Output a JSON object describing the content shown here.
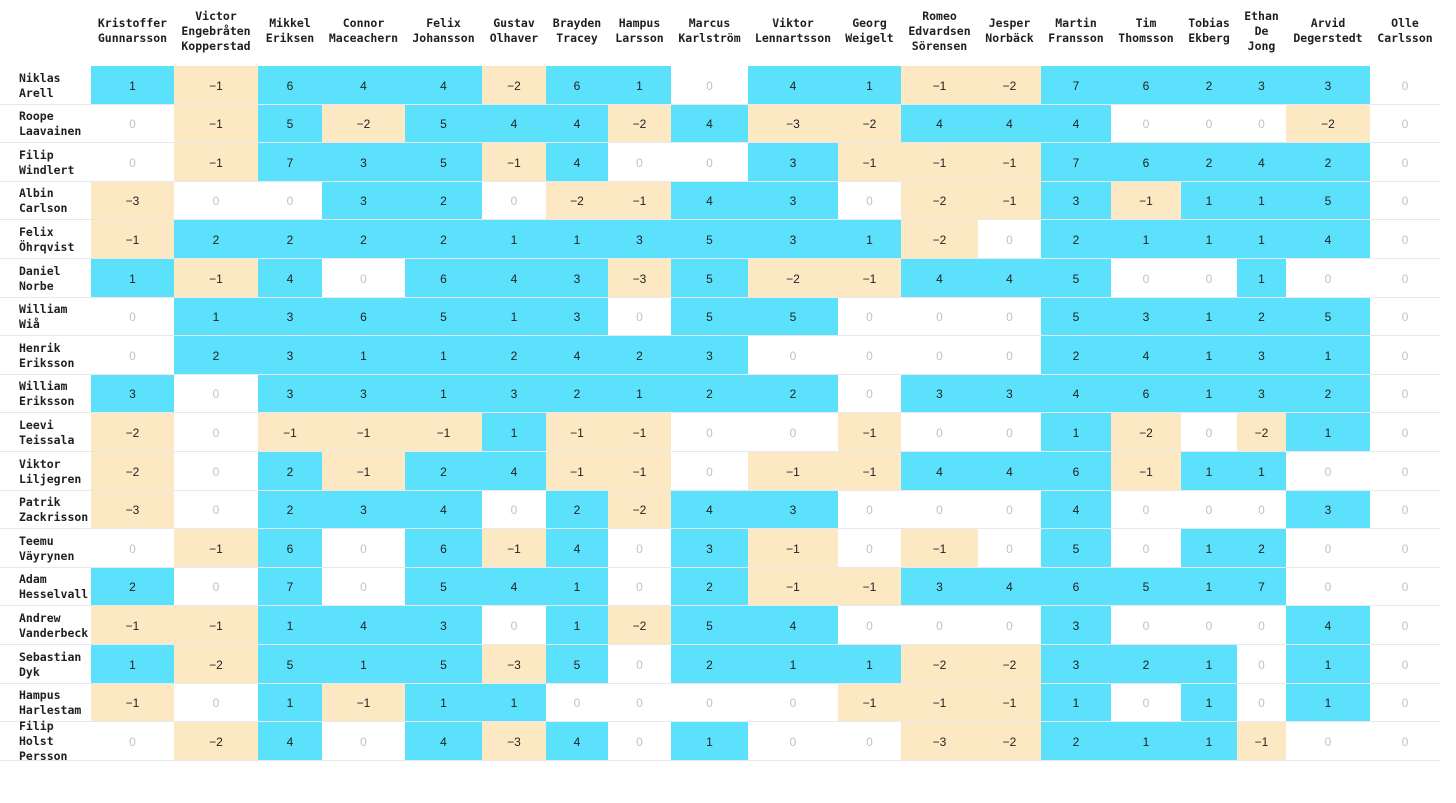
{
  "colors": {
    "positive": "#5ce1fd",
    "negative": "#fce8c3",
    "zero": "#ffffff",
    "zero_text": "#b9c3d3",
    "text": "#1f1f1f"
  },
  "chart_data": {
    "type": "heatmap",
    "columns": [
      "Kristoffer Gunnarsson",
      "Victor Engebråten Kopperstad",
      "Mikkel Eriksen",
      "Connor Maceachern",
      "Felix Johansson",
      "Gustav Olhaver",
      "Brayden Tracey",
      "Hampus Larsson",
      "Marcus Karlström",
      "Viktor Lennartsson",
      "Georg Weigelt",
      "Romeo Edvardsen Sörensen",
      "Jesper Norbäck",
      "Martin Fransson",
      "Tim Thomsson",
      "Tobias Ekberg",
      "Ethan De Jong",
      "Arvid Degerstedt",
      "Olle Carlsson"
    ],
    "rows": [
      "Niklas Arell",
      "Roope Laavainen",
      "Filip Windlert",
      "Albin Carlson",
      "Felix Öhrqvist",
      "Daniel Norbe",
      "William Wiå",
      "Henrik Eriksson",
      "William Eriksson",
      "Leevi Teissala",
      "Viktor Liljegren",
      "Patrik Zackrisson",
      "Teemu Väyrynen",
      "Adam Hesselvall",
      "Andrew Vanderbeck",
      "Sebastian Dyk",
      "Hampus Harlestam",
      "Filip Holst Persson"
    ],
    "values": [
      [
        1,
        -1,
        6,
        4,
        4,
        -2,
        6,
        1,
        0,
        4,
        1,
        -1,
        -2,
        7,
        6,
        2,
        3,
        3,
        0
      ],
      [
        0,
        -1,
        5,
        -2,
        5,
        4,
        4,
        -2,
        4,
        -3,
        -2,
        4,
        4,
        4,
        0,
        0,
        0,
        -2,
        0
      ],
      [
        0,
        -1,
        7,
        3,
        5,
        -1,
        4,
        0,
        0,
        3,
        -1,
        -1,
        -1,
        7,
        6,
        2,
        4,
        2,
        0
      ],
      [
        -3,
        0,
        0,
        3,
        2,
        0,
        -2,
        -1,
        4,
        3,
        0,
        -2,
        -1,
        3,
        -1,
        1,
        1,
        5,
        0
      ],
      [
        -1,
        2,
        2,
        2,
        2,
        1,
        1,
        3,
        5,
        3,
        1,
        -2,
        0,
        2,
        1,
        1,
        1,
        4,
        0
      ],
      [
        1,
        -1,
        4,
        0,
        6,
        4,
        3,
        -3,
        5,
        -2,
        -1,
        4,
        4,
        5,
        0,
        0,
        1,
        0,
        0
      ],
      [
        0,
        1,
        3,
        6,
        5,
        1,
        3,
        0,
        5,
        5,
        0,
        0,
        0,
        5,
        3,
        1,
        2,
        5,
        0
      ],
      [
        0,
        2,
        3,
        1,
        1,
        2,
        4,
        2,
        3,
        0,
        0,
        0,
        0,
        2,
        4,
        1,
        3,
        1,
        0
      ],
      [
        3,
        0,
        3,
        3,
        1,
        3,
        2,
        1,
        2,
        2,
        0,
        3,
        3,
        4,
        6,
        1,
        3,
        2,
        0
      ],
      [
        -2,
        0,
        -1,
        -1,
        -1,
        1,
        -1,
        -1,
        0,
        0,
        -1,
        0,
        0,
        1,
        -2,
        0,
        -2,
        1,
        0
      ],
      [
        -2,
        0,
        2,
        -1,
        2,
        4,
        -1,
        -1,
        0,
        -1,
        -1,
        4,
        4,
        6,
        -1,
        1,
        1,
        0,
        0
      ],
      [
        -3,
        0,
        2,
        3,
        4,
        0,
        2,
        -2,
        4,
        3,
        0,
        0,
        0,
        4,
        0,
        0,
        0,
        3,
        0
      ],
      [
        0,
        -1,
        6,
        0,
        6,
        -1,
        4,
        0,
        3,
        -1,
        0,
        -1,
        0,
        5,
        0,
        1,
        2,
        0,
        0
      ],
      [
        2,
        0,
        7,
        0,
        5,
        4,
        1,
        0,
        2,
        -1,
        -1,
        3,
        4,
        6,
        5,
        1,
        7,
        0,
        0
      ],
      [
        -1,
        -1,
        1,
        4,
        3,
        0,
        1,
        -2,
        5,
        4,
        0,
        0,
        0,
        3,
        0,
        0,
        0,
        4,
        0
      ],
      [
        1,
        -2,
        5,
        1,
        5,
        -3,
        5,
        0,
        2,
        1,
        1,
        -2,
        -2,
        3,
        2,
        1,
        0,
        1,
        0
      ],
      [
        -1,
        0,
        1,
        -1,
        1,
        1,
        0,
        0,
        0,
        0,
        -1,
        -1,
        -1,
        1,
        0,
        1,
        0,
        1,
        0
      ],
      [
        0,
        -2,
        4,
        0,
        4,
        -3,
        4,
        0,
        1,
        0,
        0,
        -3,
        -2,
        2,
        1,
        1,
        -1,
        0,
        0
      ]
    ]
  }
}
